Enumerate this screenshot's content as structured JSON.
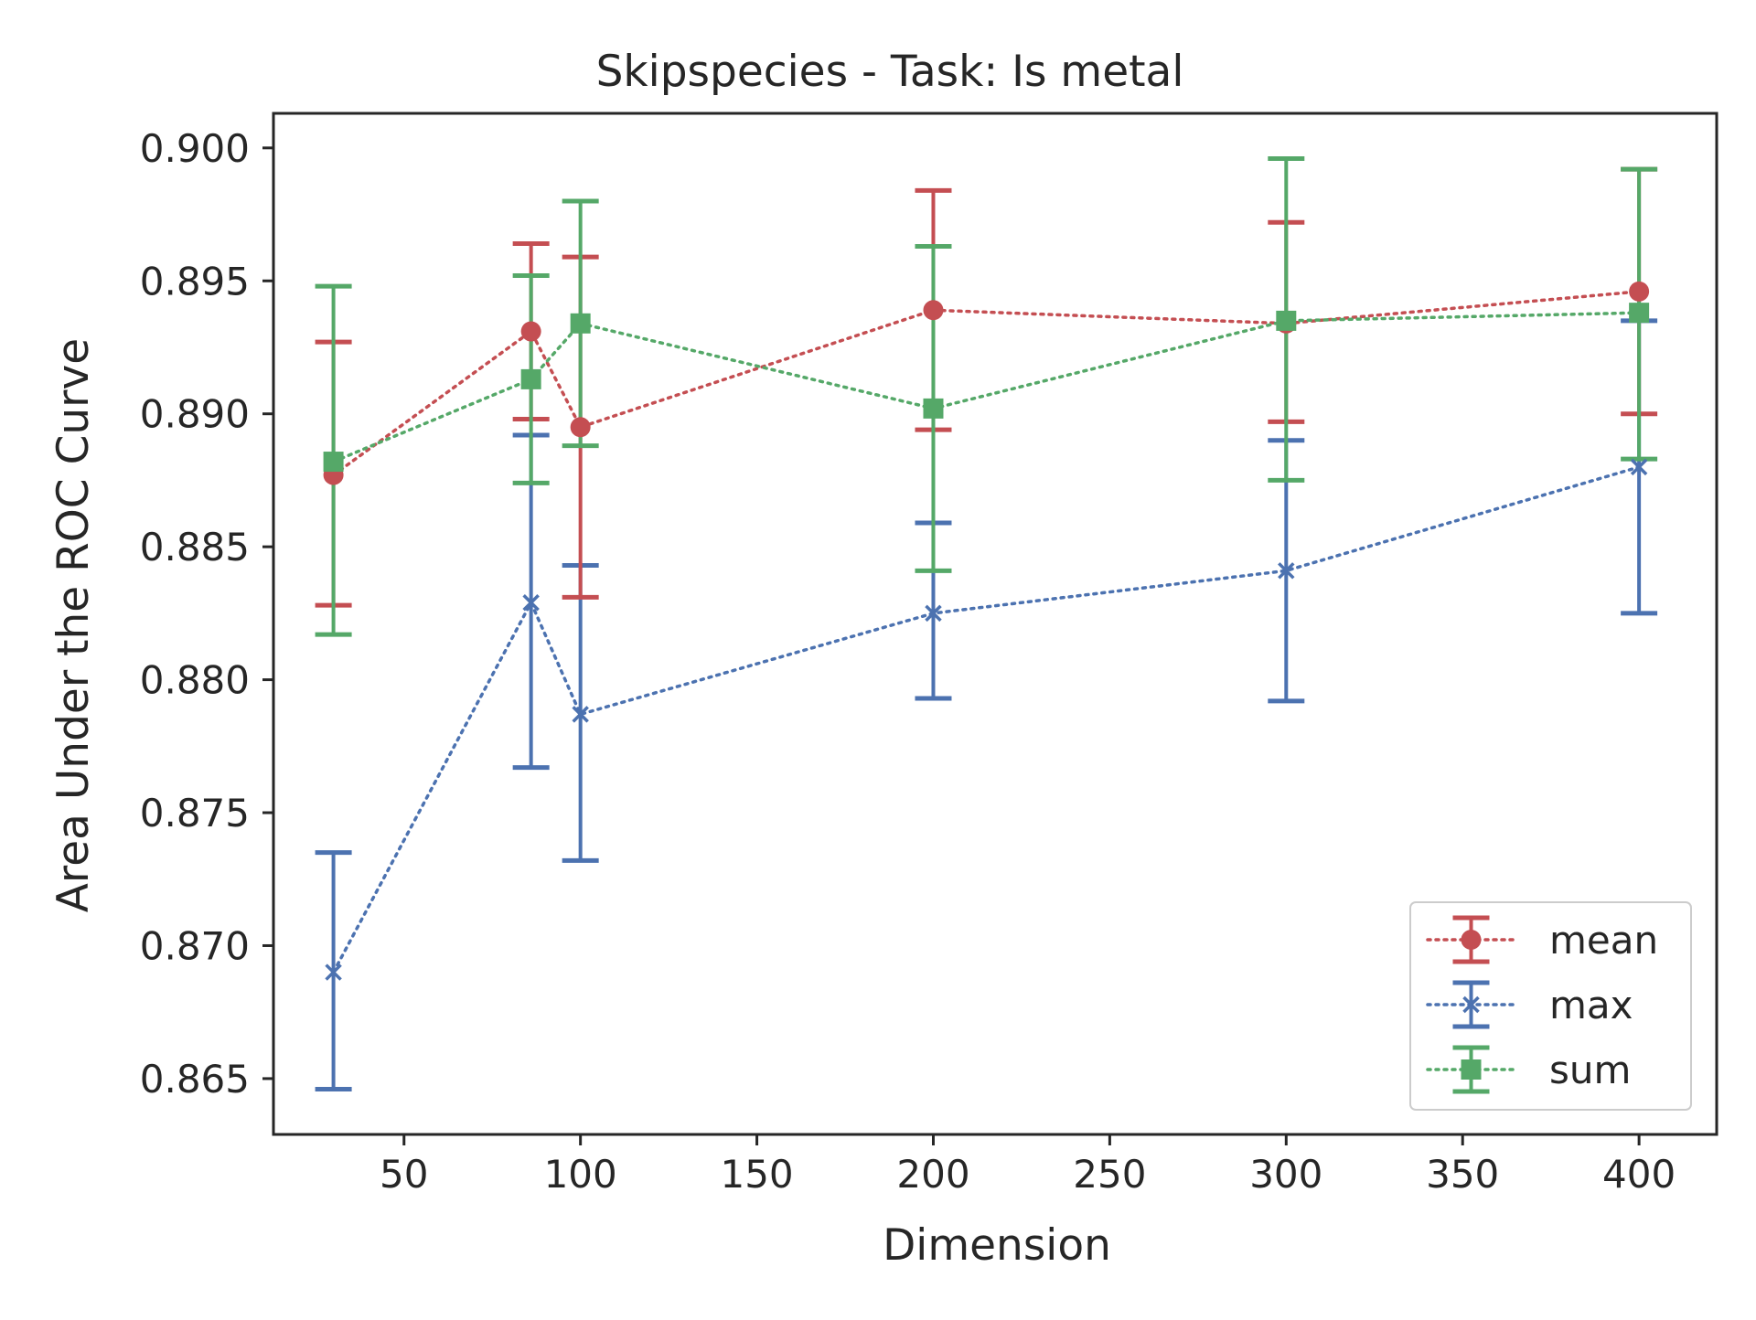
{
  "chart_data": {
    "type": "line",
    "title": "Skipspecies - Task: Is metal",
    "xlabel": "Dimension",
    "ylabel": "Area Under the ROC Curve",
    "xlim": [
      13,
      422
    ],
    "ylim": [
      0.8629,
      0.9013
    ],
    "xticks": [
      50,
      100,
      150,
      200,
      250,
      300,
      350,
      400
    ],
    "xtick_labels": [
      "50",
      "100",
      "150",
      "200",
      "250",
      "300",
      "350",
      "400"
    ],
    "yticks": [
      0.865,
      0.87,
      0.875,
      0.88,
      0.885,
      0.89,
      0.895,
      0.9
    ],
    "ytick_labels": [
      "0.865",
      "0.870",
      "0.875",
      "0.880",
      "0.885",
      "0.890",
      "0.895",
      "0.900"
    ],
    "grid": false,
    "legend_position": "lower-right",
    "series": [
      {
        "name": "mean",
        "color": "#c44e52",
        "marker": "circle",
        "linestyle": "dotted",
        "x": [
          30,
          86,
          100,
          200,
          300,
          400
        ],
        "y": [
          0.8877,
          0.8931,
          0.8895,
          0.8939,
          0.8934,
          0.8946
        ],
        "err_low": [
          0.8828,
          0.8898,
          0.8831,
          0.8894,
          0.8897,
          0.89
        ],
        "err_high": [
          0.8927,
          0.8964,
          0.8959,
          0.8984,
          0.8972,
          0.8992
        ]
      },
      {
        "name": "max",
        "color": "#4c72b0",
        "marker": "x",
        "linestyle": "dotted",
        "x": [
          30,
          86,
          100,
          200,
          300,
          400
        ],
        "y": [
          0.869,
          0.8829,
          0.8787,
          0.8825,
          0.8841,
          0.888
        ],
        "err_low": [
          0.8646,
          0.8767,
          0.8732,
          0.8793,
          0.8792,
          0.8825
        ],
        "err_high": [
          0.8735,
          0.8892,
          0.8843,
          0.8859,
          0.889,
          0.8935
        ]
      },
      {
        "name": "sum",
        "color": "#55a868",
        "marker": "square",
        "linestyle": "dotted",
        "x": [
          30,
          86,
          100,
          200,
          300,
          400
        ],
        "y": [
          0.8882,
          0.8913,
          0.8934,
          0.8902,
          0.8935,
          0.8938
        ],
        "err_low": [
          0.8817,
          0.8874,
          0.8888,
          0.8841,
          0.8875,
          0.8883
        ],
        "err_high": [
          0.8948,
          0.8952,
          0.898,
          0.8963,
          0.8996,
          0.8992
        ]
      }
    ]
  }
}
